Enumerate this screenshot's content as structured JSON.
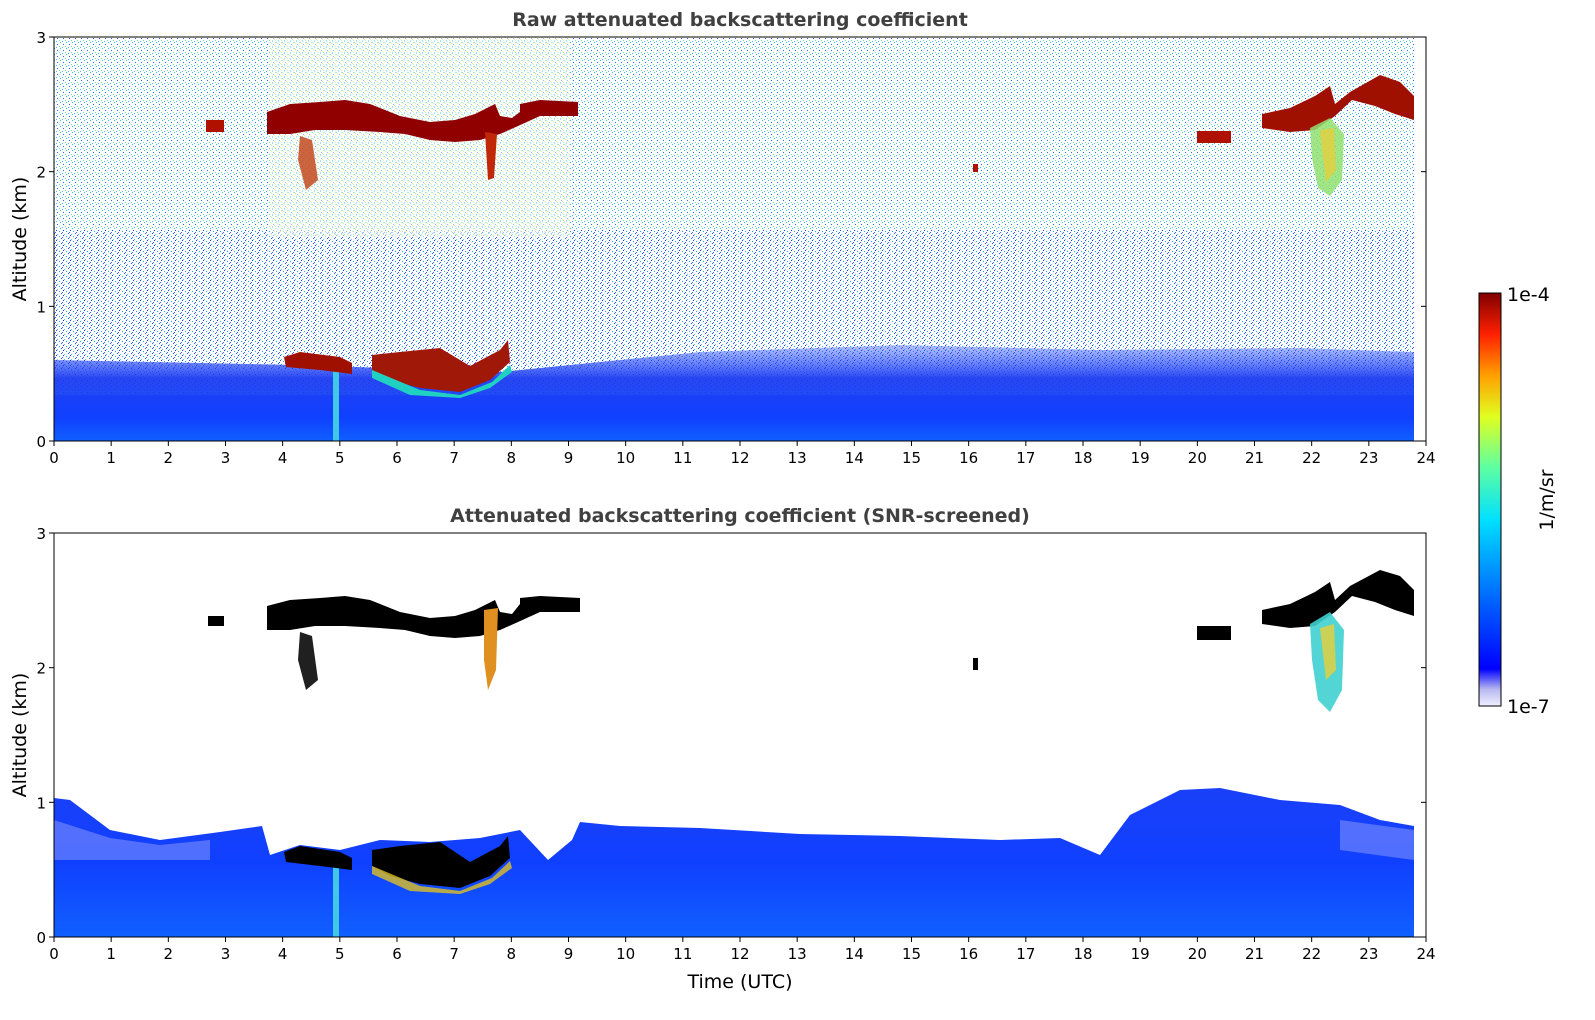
{
  "chart_data": [
    {
      "type": "heatmap",
      "title": "Raw attenuated backscattering coefficient",
      "xlabel": "",
      "ylabel": "Altitude (km)",
      "xlim": [
        0,
        24
      ],
      "ylim": [
        0,
        3
      ],
      "x_ticks": [
        "0",
        "1",
        "2",
        "3",
        "4",
        "5",
        "6",
        "7",
        "8",
        "9",
        "10",
        "11",
        "12",
        "13",
        "14",
        "15",
        "16",
        "17",
        "18",
        "19",
        "20",
        "21",
        "22",
        "23",
        "24"
      ],
      "y_ticks": [
        "0",
        "1",
        "2",
        "3"
      ],
      "data_extent_x": [
        0,
        23.8
      ],
      "layers": [
        {
          "feature": "boundary layer aerosol",
          "x_range": [
            0,
            23.8
          ],
          "altitude_top_km": 0.6,
          "intensity": "low"
        },
        {
          "feature": "cloud",
          "x_range": [
            3.8,
            5.2
          ],
          "altitude_km": [
            0.52,
            0.62
          ],
          "intensity": "high"
        },
        {
          "feature": "cloud",
          "x_range": [
            5.6,
            8.0
          ],
          "altitude_km": [
            0.38,
            0.7
          ],
          "intensity": "high"
        },
        {
          "feature": "cloud",
          "x_range": [
            2.7,
            3.0
          ],
          "altitude_km": [
            2.3,
            2.37
          ],
          "intensity": "high"
        },
        {
          "feature": "cloud",
          "x_range": [
            3.7,
            9.2
          ],
          "altitude_km": [
            2.2,
            2.55
          ],
          "intensity": "high"
        },
        {
          "feature": "cloud",
          "x_range": [
            16.1,
            16.2
          ],
          "altitude_km": [
            2.0,
            2.05
          ],
          "intensity": "high"
        },
        {
          "feature": "cloud",
          "x_range": [
            19.9,
            20.6
          ],
          "altitude_km": [
            2.2,
            2.3
          ],
          "intensity": "high"
        },
        {
          "feature": "cloud",
          "x_range": [
            21.1,
            23.8
          ],
          "altitude_km": [
            2.3,
            2.7
          ],
          "intensity": "high"
        },
        {
          "feature": "virga",
          "x_range": [
            22.0,
            22.6
          ],
          "altitude_km": [
            1.8,
            2.4
          ],
          "intensity": "medium"
        }
      ]
    },
    {
      "type": "heatmap",
      "title": "Attenuated backscattering coefficient (SNR-screened)",
      "xlabel": "Time (UTC)",
      "ylabel": "Altitude (km)",
      "xlim": [
        0,
        24
      ],
      "ylim": [
        0,
        3
      ],
      "x_ticks": [
        "0",
        "1",
        "2",
        "3",
        "4",
        "5",
        "6",
        "7",
        "8",
        "9",
        "10",
        "11",
        "12",
        "13",
        "14",
        "15",
        "16",
        "17",
        "18",
        "19",
        "20",
        "21",
        "22",
        "23",
        "24"
      ],
      "y_ticks": [
        "0",
        "1",
        "2",
        "3"
      ],
      "data_extent_x": [
        0,
        23.8
      ],
      "layers": [
        {
          "feature": "boundary layer aerosol",
          "x_range": [
            0,
            23.8
          ],
          "altitude_top_km": 0.8,
          "intensity": "low"
        },
        {
          "feature": "cloud",
          "x_range": [
            4.0,
            5.2
          ],
          "altitude_km": [
            0.52,
            0.62
          ],
          "intensity": "saturated"
        },
        {
          "feature": "cloud",
          "x_range": [
            5.6,
            8.0
          ],
          "altitude_km": [
            0.38,
            0.7
          ],
          "intensity": "saturated"
        },
        {
          "feature": "cloud",
          "x_range": [
            3.7,
            9.2
          ],
          "altitude_km": [
            2.2,
            2.55
          ],
          "intensity": "saturated"
        },
        {
          "feature": "cloud",
          "x_range": [
            16.1,
            16.2
          ],
          "altitude_km": [
            2.0,
            2.05
          ],
          "intensity": "saturated"
        },
        {
          "feature": "cloud",
          "x_range": [
            19.9,
            20.6
          ],
          "altitude_km": [
            2.2,
            2.3
          ],
          "intensity": "saturated"
        },
        {
          "feature": "cloud",
          "x_range": [
            21.1,
            23.8
          ],
          "altitude_km": [
            2.3,
            2.7
          ],
          "intensity": "saturated"
        },
        {
          "feature": "virga",
          "x_range": [
            22.0,
            22.6
          ],
          "altitude_km": [
            1.7,
            2.4
          ],
          "intensity": "medium"
        }
      ]
    }
  ],
  "colorbar": {
    "label": "1/m/sr",
    "max_label": "1e-4",
    "min_label": "1e-7",
    "scale": "log",
    "range": [
      1e-07,
      0.0001
    ],
    "colormap": "jet"
  },
  "colors": {
    "title": "#404040",
    "saturated": "#000000",
    "background": "#ffffff"
  }
}
